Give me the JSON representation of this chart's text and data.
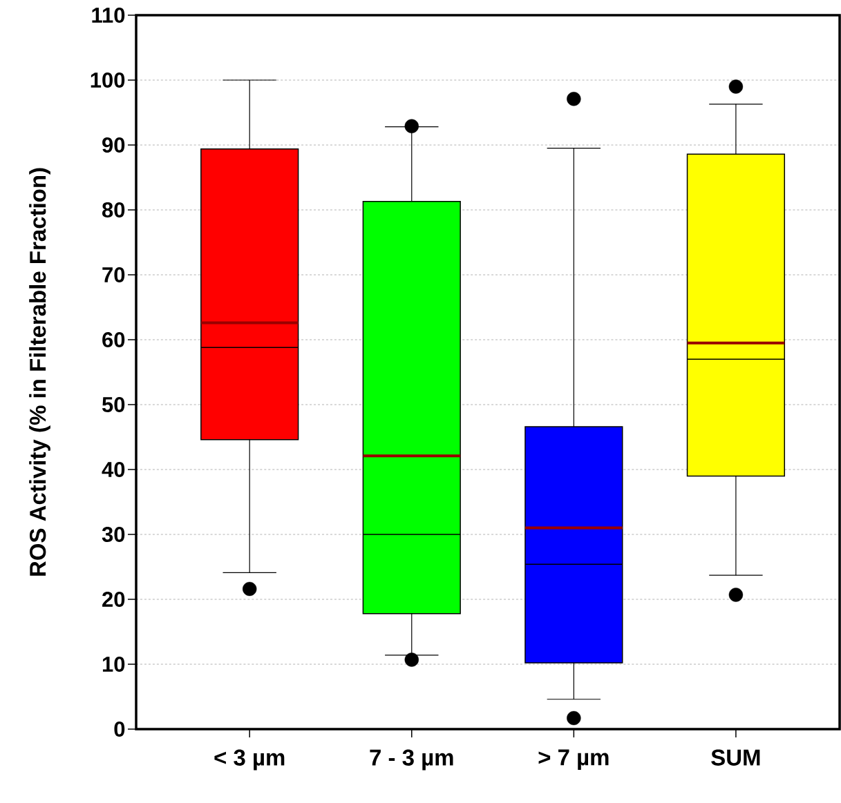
{
  "chart_data": {
    "type": "box",
    "ylabel": "ROS Activity (% in Filterable Fraction)",
    "categories": [
      "< 3 µm",
      "7 - 3 µm",
      "> 7 µm",
      "SUM"
    ],
    "colors": [
      "#ff0000",
      "#00ff00",
      "#0000ff",
      "#ffff00"
    ],
    "boxes": [
      {
        "low": 24.1,
        "q1": 44.6,
        "median": 58.8,
        "q3": 89.4,
        "high": 100,
        "mean": 62.6,
        "outliers": [
          21.6
        ]
      },
      {
        "low": 11.4,
        "q1": 17.8,
        "median": 30.0,
        "q3": 81.3,
        "high": 92.8,
        "mean": 42.1,
        "outliers": [
          10.7,
          92.9
        ]
      },
      {
        "low": 4.6,
        "q1": 10.2,
        "median": 25.4,
        "q3": 46.6,
        "high": 89.5,
        "mean": 31.0,
        "outliers": [
          1.7,
          97.1
        ]
      },
      {
        "low": 23.7,
        "q1": 39.0,
        "median": 57.0,
        "q3": 88.6,
        "high": 96.3,
        "mean": 59.5,
        "outliers": [
          20.7,
          99.0
        ]
      }
    ],
    "ylim": [
      0,
      110
    ],
    "yticks": [
      0,
      10,
      20,
      30,
      40,
      50,
      60,
      70,
      80,
      90,
      100,
      110
    ],
    "grid": "y"
  }
}
